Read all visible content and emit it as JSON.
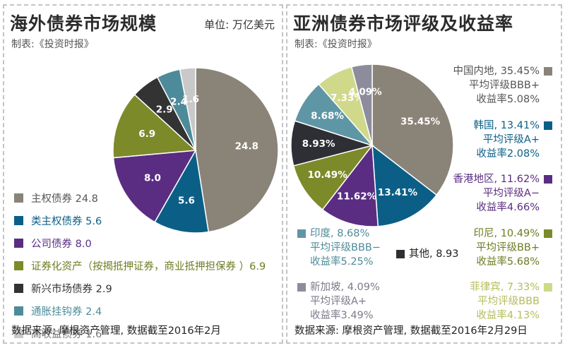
{
  "left": {
    "title": "海外债券市场规模",
    "unit": "单位: 万亿美元",
    "credit": "制表:《投资时报》",
    "source": "数据来源: 摩根资产管理, 数据截至2016年2月",
    "legend": [
      {
        "label": "主权债券 24.8",
        "color": "#8a8378",
        "text_color": "#555555"
      },
      {
        "label": "类主权债券 5.6",
        "color": "#0b5f86",
        "text_color": "#0b5f86"
      },
      {
        "label": "公司债券 8.0",
        "color": "#5a2d82",
        "text_color": "#5a2d82"
      },
      {
        "label": "证券化资产（按揭抵押证券，商业抵押担保券 ）6.9",
        "color": "#7d8a2a",
        "text_color": "#6f7b22"
      },
      {
        "label": "新兴市场债券 2.9",
        "color": "#333333",
        "text_color": "#333333"
      },
      {
        "label": "通胀挂钩券 2.4",
        "color": "#4e8b9a",
        "text_color": "#4e8b9a"
      },
      {
        "label": "高收益债券 1.6",
        "color": "#c9c9c9",
        "text_color": "#777777"
      }
    ]
  },
  "right": {
    "title": "亚洲债券市场评级及收益率",
    "credit": "制表:《投资时报》",
    "source": "数据来源: 摩根资产管理, 数据截至2016年2月29日",
    "labels": {
      "china": {
        "lines": [
          "中国内地, 35.45%",
          "平均评级BBB+",
          "收益率5.08%"
        ],
        "color": "#8a8378",
        "text_color": "#555555"
      },
      "korea": {
        "lines": [
          "韩国, 13.41%",
          "平均评级A+",
          "收益率2.08%"
        ],
        "color": "#0b5f86",
        "text_color": "#0b5f86"
      },
      "hongkong": {
        "lines": [
          "香港地区, 11.62%",
          "平均评级A−",
          "收益率4.66%"
        ],
        "color": "#5a2d82",
        "text_color": "#5a2d82"
      },
      "india": {
        "lines": [
          "印度, 8.68%",
          "平均评级BBB−",
          "收益率5.25%"
        ],
        "color": "#5f96a6",
        "text_color": "#4e8b9a"
      },
      "others": {
        "lines": [
          "其他, 8.93"
        ],
        "color": "#2e2e35",
        "text_color": "#222222"
      },
      "indonesia": {
        "lines": [
          "印尼, 10.49%",
          "平均评级BB+",
          "收益率5.68%"
        ],
        "color": "#7d8a2a",
        "text_color": "#6f7b22"
      },
      "singapore": {
        "lines": [
          "新加坡, 4.09%",
          "平均评级A+",
          "收益率3.49%"
        ],
        "color": "#8d8c9c",
        "text_color": "#7b7a8c"
      },
      "philippines": {
        "lines": [
          "菲律宾, 7.33%",
          "平均评级BBB",
          "收益率4.13%"
        ],
        "color": "#d0d98a",
        "text_color": "#b5bd5a"
      }
    }
  },
  "chart_data": [
    {
      "type": "pie",
      "title": "海外债券市场规模",
      "unit": "万亿美元",
      "slices": [
        {
          "name": "主权债券",
          "value": 24.8,
          "color": "#8a8378"
        },
        {
          "name": "类主权债券",
          "value": 5.6,
          "color": "#0b5f86"
        },
        {
          "name": "公司债券",
          "value": 8.0,
          "color": "#5a2d82"
        },
        {
          "name": "证券化资产",
          "value": 6.9,
          "color": "#7d8a2a"
        },
        {
          "name": "新兴市场债券",
          "value": 2.9,
          "color": "#333333"
        },
        {
          "name": "通胀挂钩券",
          "value": 2.4,
          "color": "#4e8b9a"
        },
        {
          "name": "高收益债券",
          "value": 1.6,
          "color": "#c9c9c9"
        }
      ]
    },
    {
      "type": "pie",
      "title": "亚洲债券市场评级及收益率",
      "unit": "%",
      "slices": [
        {
          "name": "中国内地",
          "value": 35.45,
          "label": "35.45%",
          "color": "#8a8378",
          "rating": "BBB+",
          "yield": "5.08%"
        },
        {
          "name": "韩国",
          "value": 13.41,
          "label": "13.41%",
          "color": "#0b5f86",
          "rating": "A+",
          "yield": "2.08%"
        },
        {
          "name": "香港地区",
          "value": 11.62,
          "label": "11.62%",
          "color": "#5a2d82",
          "rating": "A−",
          "yield": "4.66%"
        },
        {
          "name": "印尼",
          "value": 10.49,
          "label": "10.49%",
          "color": "#7d8a2a",
          "rating": "BB+",
          "yield": "5.68%"
        },
        {
          "name": "其他",
          "value": 8.93,
          "label": "8.93%",
          "color": "#2e2e35"
        },
        {
          "name": "印度",
          "value": 8.68,
          "label": "8.68%",
          "color": "#5f96a6",
          "rating": "BBB−",
          "yield": "5.25%"
        },
        {
          "name": "菲律宾",
          "value": 7.33,
          "label": "7.33%",
          "color": "#d0d98a",
          "rating": "BBB",
          "yield": "4.13%"
        },
        {
          "name": "新加坡",
          "value": 4.09,
          "label": "4.09%",
          "color": "#8d8c9c",
          "rating": "A+",
          "yield": "3.49%"
        }
      ]
    }
  ]
}
